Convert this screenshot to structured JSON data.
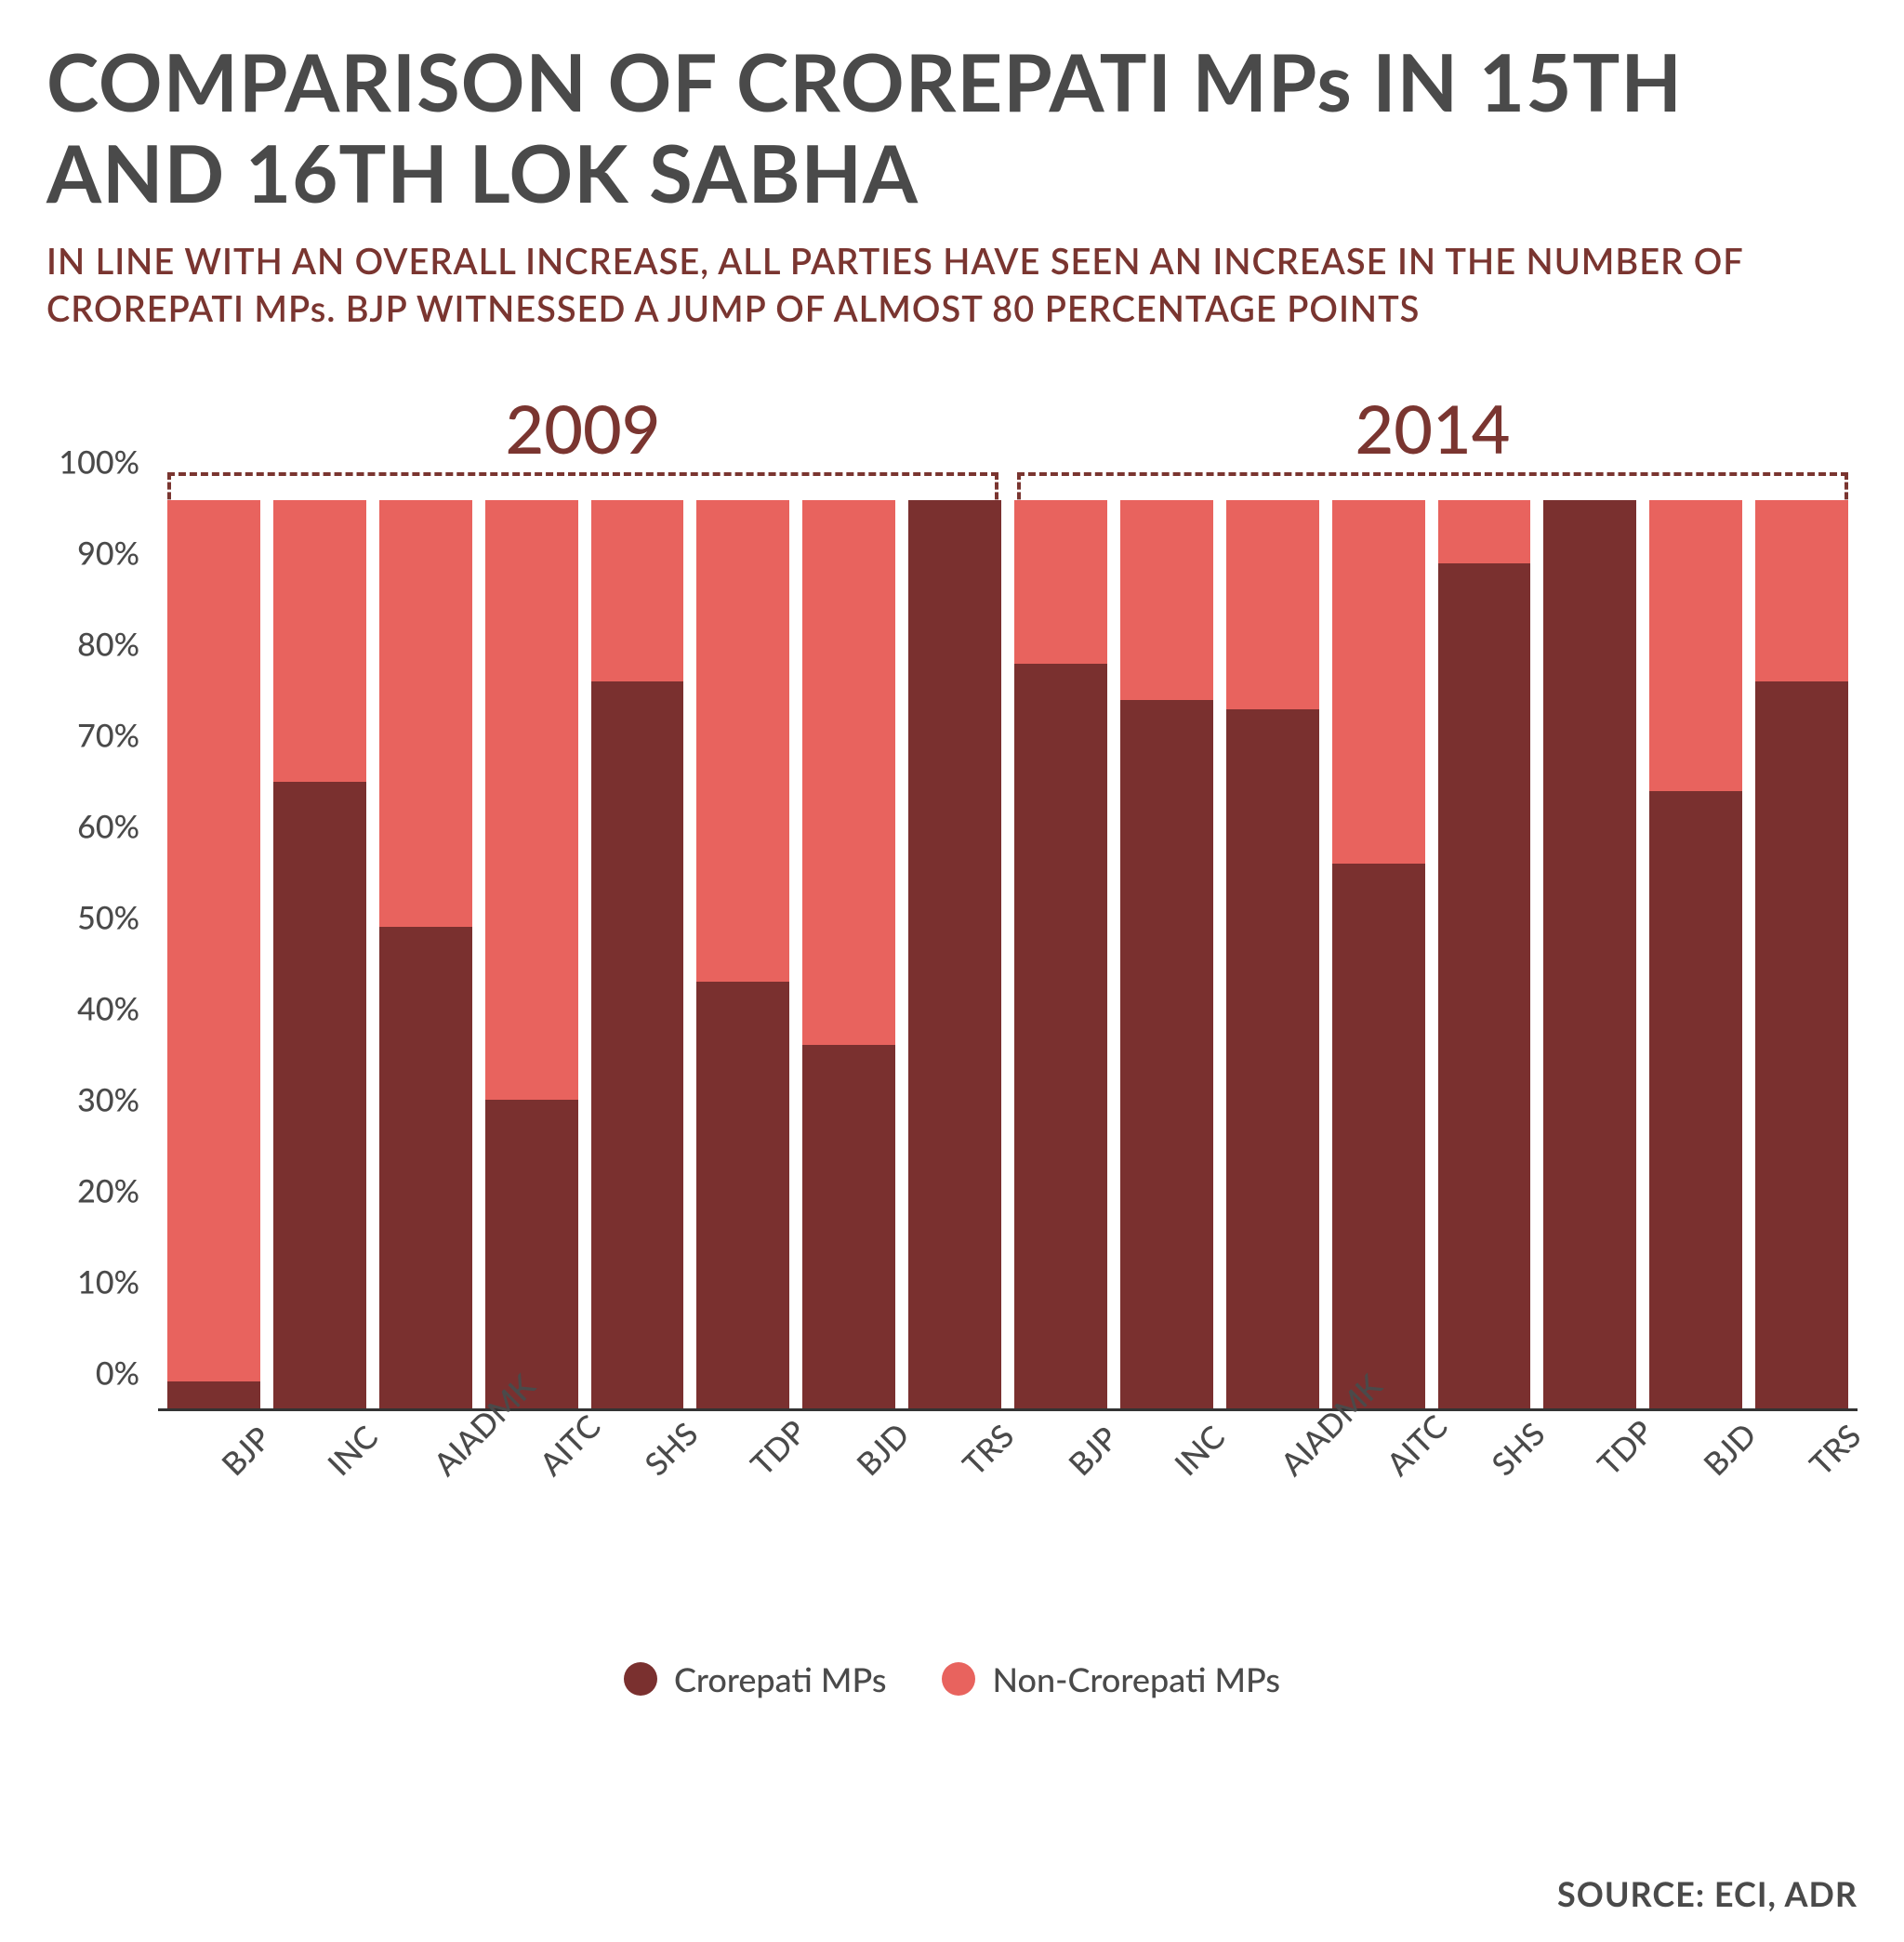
{
  "title": "COMPARISON OF CROREPATI MPs IN 15TH AND 16TH LOK SABHA",
  "subtitle": "IN LINE WITH AN OVERALL INCREASE, ALL PARTIES HAVE SEEN AN INCREASE IN THE NUMBER OF CROREPATI MPs. BJP WITNESSED A JUMP OF ALMOST 80 PERCENTAGE POINTS",
  "source": "SOURCE: ECI, ADR",
  "chart": {
    "type": "stacked-bar",
    "background_color": "#ffffff",
    "title_color": "#4a4a4a",
    "subtitle_color": "#7a3530",
    "title_fontsize": 85,
    "subtitle_fontsize": 38,
    "axis_label_fontsize": 34,
    "group_label_fontsize": 72,
    "legend_fontsize": 36,
    "bracket_color": "#7a3530",
    "axis_line_color": "#333333",
    "ylim": [
      0,
      100
    ],
    "ytick_step": 10,
    "y_suffix": "%",
    "bar_total_pct": 98,
    "groups": [
      {
        "label": "2009"
      },
      {
        "label": "2014"
      }
    ],
    "categories": [
      "BJP",
      "INC",
      "AIADMK",
      "AITC",
      "SHS",
      "TDP",
      "BJD",
      "TRS",
      "BJP",
      "INC",
      "AIADMK",
      "AITC",
      "SHS",
      "TDP",
      "BJD",
      "TRS"
    ],
    "series": [
      {
        "name": "Crorepati MPs",
        "color": "#7a302f"
      },
      {
        "name": "Non-Crorepati MPs",
        "color": "#e8635e"
      }
    ],
    "values_crorepati": [
      3,
      69,
      53,
      34,
      80,
      47,
      40,
      100,
      82,
      78,
      77,
      60,
      93,
      100,
      68,
      80
    ],
    "values_noncrorepati": [
      97,
      31,
      47,
      66,
      20,
      53,
      60,
      0,
      18,
      22,
      23,
      40,
      7,
      0,
      32,
      20
    ]
  }
}
